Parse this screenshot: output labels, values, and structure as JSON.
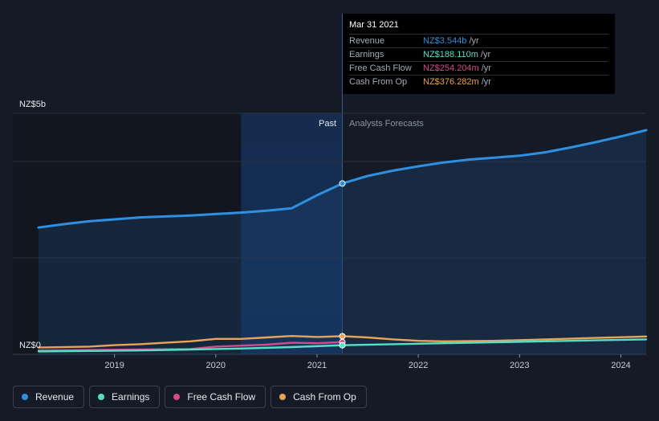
{
  "chart_data": {
    "type": "line",
    "y_axis": {
      "top_label": "NZ$5b",
      "bottom_label": "NZ$0",
      "ylim": [
        0,
        5.0
      ],
      "unit": "NZ$ billions"
    },
    "x_ticks": [
      "2019",
      "2020",
      "2021",
      "2022",
      "2023",
      "2024"
    ],
    "x_range": [
      2018.25,
      2024.25
    ],
    "regions": {
      "past_label": "Past",
      "forecast_label": "Analysts Forecasts",
      "divider_x": 2021.25,
      "highlight_start_x": 2020.25
    },
    "series": [
      {
        "name": "Revenue",
        "color": "#2f8fe0",
        "past": [
          [
            2018.25,
            2.63
          ],
          [
            2018.5,
            2.7
          ],
          [
            2018.75,
            2.76
          ],
          [
            2019.0,
            2.8
          ],
          [
            2019.25,
            2.84
          ],
          [
            2019.5,
            2.86
          ],
          [
            2019.75,
            2.88
          ],
          [
            2020.0,
            2.91
          ],
          [
            2020.25,
            2.94
          ],
          [
            2020.5,
            2.98
          ],
          [
            2020.75,
            3.03
          ],
          [
            2021.0,
            3.3
          ],
          [
            2021.25,
            3.544
          ]
        ],
        "forecast": [
          [
            2021.25,
            3.544
          ],
          [
            2021.5,
            3.7
          ],
          [
            2021.75,
            3.81
          ],
          [
            2022.0,
            3.9
          ],
          [
            2022.25,
            3.98
          ],
          [
            2022.5,
            4.04
          ],
          [
            2022.75,
            4.08
          ],
          [
            2023.0,
            4.12
          ],
          [
            2023.25,
            4.19
          ],
          [
            2023.5,
            4.29
          ],
          [
            2023.75,
            4.4
          ],
          [
            2024.0,
            4.52
          ],
          [
            2024.25,
            4.65
          ]
        ]
      },
      {
        "name": "Earnings",
        "color": "#56dfc4",
        "past": [
          [
            2018.25,
            0.06
          ],
          [
            2018.75,
            0.07
          ],
          [
            2019.25,
            0.08
          ],
          [
            2019.75,
            0.1
          ],
          [
            2020.25,
            0.12
          ],
          [
            2020.75,
            0.15
          ],
          [
            2021.25,
            0.188
          ]
        ],
        "forecast": [
          [
            2021.25,
            0.188
          ],
          [
            2021.75,
            0.21
          ],
          [
            2022.25,
            0.23
          ],
          [
            2022.75,
            0.25
          ],
          [
            2023.25,
            0.27
          ],
          [
            2023.75,
            0.29
          ],
          [
            2024.25,
            0.31
          ]
        ]
      },
      {
        "name": "Free Cash Flow",
        "color": "#d54b8a",
        "past": [
          [
            2018.25,
            0.08
          ],
          [
            2018.75,
            0.09
          ],
          [
            2019.25,
            0.1
          ],
          [
            2019.75,
            0.11
          ],
          [
            2020.0,
            0.16
          ],
          [
            2020.25,
            0.18
          ],
          [
            2020.5,
            0.2
          ],
          [
            2020.75,
            0.24
          ],
          [
            2021.0,
            0.23
          ],
          [
            2021.25,
            0.254
          ]
        ],
        "forecast": []
      },
      {
        "name": "Cash From Op",
        "color": "#e8a356",
        "past": [
          [
            2018.25,
            0.14
          ],
          [
            2018.75,
            0.16
          ],
          [
            2019.0,
            0.19
          ],
          [
            2019.25,
            0.21
          ],
          [
            2019.5,
            0.24
          ],
          [
            2019.75,
            0.27
          ],
          [
            2020.0,
            0.32
          ],
          [
            2020.25,
            0.32
          ],
          [
            2020.5,
            0.35
          ],
          [
            2020.75,
            0.38
          ],
          [
            2021.0,
            0.36
          ],
          [
            2021.25,
            0.376
          ]
        ],
        "forecast": [
          [
            2021.25,
            0.376
          ],
          [
            2021.5,
            0.35
          ],
          [
            2021.75,
            0.31
          ],
          [
            2022.0,
            0.28
          ],
          [
            2022.25,
            0.27
          ],
          [
            2022.75,
            0.28
          ],
          [
            2023.25,
            0.31
          ],
          [
            2023.75,
            0.34
          ],
          [
            2024.25,
            0.37
          ]
        ]
      }
    ]
  },
  "tooltip": {
    "date": "Mar 31 2021",
    "rows": [
      {
        "label": "Revenue",
        "value": "NZ$3.544b",
        "unit": "/yr",
        "color": "#2f8fe0"
      },
      {
        "label": "Earnings",
        "value": "NZ$188.110m",
        "unit": "/yr",
        "color": "#56dfc4"
      },
      {
        "label": "Free Cash Flow",
        "value": "NZ$254.204m",
        "unit": "/yr",
        "color": "#d54b8a"
      },
      {
        "label": "Cash From Op",
        "value": "NZ$376.282m",
        "unit": "/yr",
        "color": "#e8a356"
      }
    ]
  },
  "legend": [
    {
      "label": "Revenue",
      "color": "#2f8fe0"
    },
    {
      "label": "Earnings",
      "color": "#56dfc4"
    },
    {
      "label": "Free Cash Flow",
      "color": "#d54b8a"
    },
    {
      "label": "Cash From Op",
      "color": "#e8a356"
    }
  ]
}
